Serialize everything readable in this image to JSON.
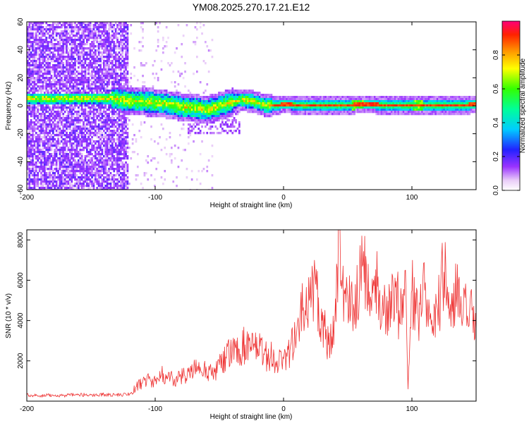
{
  "figure_title": "YM08.2025.270.17.21.E12",
  "colors": {
    "snr_line": "#ee3333",
    "axis": "#000000",
    "background": "#ffffff"
  },
  "colorbar": {
    "label": "Normalized spectral amplitude",
    "ticks": [
      "0.0",
      "0.2",
      "0.4",
      "0.6",
      "0.8"
    ],
    "tick_values": [
      0.0,
      0.2,
      0.4,
      0.6,
      0.8
    ],
    "range": [
      0,
      1
    ]
  },
  "chart_data": [
    {
      "type": "heatmap",
      "title": "",
      "xlabel": "Height of straight line (km)",
      "ylabel": "Frequency (Hz)",
      "xlim": [
        -200,
        150
      ],
      "ylim": [
        -60,
        60
      ],
      "x_ticks": [
        "-200",
        "-100",
        "0",
        "100"
      ],
      "x_tick_values": [
        -200,
        -100,
        0,
        100
      ],
      "y_ticks": [
        "60",
        "40",
        "20",
        "0",
        "-20",
        "-40",
        "-60"
      ],
      "y_tick_values": [
        60,
        40,
        20,
        0,
        -20,
        -40,
        -60
      ],
      "ridge": [
        [
          -135,
          6
        ],
        [
          -120,
          4
        ],
        [
          -100,
          3
        ],
        [
          -80,
          0
        ],
        [
          -60,
          -2
        ],
        [
          -45,
          2
        ],
        [
          -35,
          5
        ],
        [
          -25,
          4
        ],
        [
          -15,
          1
        ],
        [
          -5,
          1
        ],
        [
          0,
          2
        ],
        [
          10,
          1
        ],
        [
          30,
          1
        ],
        [
          50,
          1
        ],
        [
          60,
          2
        ],
        [
          80,
          1
        ],
        [
          100,
          1
        ],
        [
          120,
          1
        ],
        [
          140,
          1
        ],
        [
          150,
          2
        ]
      ]
    },
    {
      "type": "line",
      "title": "",
      "xlabel": "Height of straight line (km)",
      "ylabel": "SNR (10 * v/v)",
      "xlim": [
        -200,
        150
      ],
      "ylim": [
        0,
        8500
      ],
      "x_ticks": [
        "-200",
        "-100",
        "0",
        "100"
      ],
      "x_tick_values": [
        -200,
        -100,
        0,
        100
      ],
      "y_ticks": [
        "2000",
        "4000",
        "6000",
        "8000"
      ],
      "y_tick_values": [
        2000,
        4000,
        6000,
        8000
      ],
      "series": [
        {
          "name": "SNR",
          "x": [
            -200,
            -190,
            -180,
            -170,
            -160,
            -150,
            -140,
            -130,
            -120,
            -115,
            -110,
            -105,
            -100,
            -95,
            -90,
            -85,
            -80,
            -75,
            -70,
            -65,
            -60,
            -55,
            -50,
            -45,
            -40,
            -35,
            -30,
            -25,
            -20,
            -15,
            -10,
            -5,
            0,
            5,
            10,
            15,
            20,
            25,
            30,
            35,
            40,
            44,
            45,
            50,
            55,
            60,
            61,
            65,
            70,
            75,
            80,
            85,
            90,
            95,
            97,
            100,
            105,
            110,
            115,
            120,
            125,
            130,
            135,
            140,
            145,
            150
          ],
          "values": [
            300,
            250,
            300,
            280,
            320,
            300,
            330,
            300,
            350,
            700,
            900,
            1100,
            1000,
            1300,
            1200,
            1100,
            1200,
            1300,
            1500,
            1700,
            1500,
            1300,
            1800,
            2200,
            2400,
            2600,
            2800,
            2500,
            2600,
            2300,
            2200,
            2000,
            2100,
            2500,
            3200,
            4500,
            5000,
            5800,
            4000,
            2800,
            4000,
            8300,
            6000,
            5200,
            4500,
            6500,
            8200,
            5000,
            6000,
            5500,
            4000,
            6200,
            4500,
            6500,
            600,
            5500,
            4000,
            5500,
            3800,
            4500,
            6400,
            4800,
            5200,
            4300,
            4500,
            3500
          ]
        }
      ]
    }
  ]
}
